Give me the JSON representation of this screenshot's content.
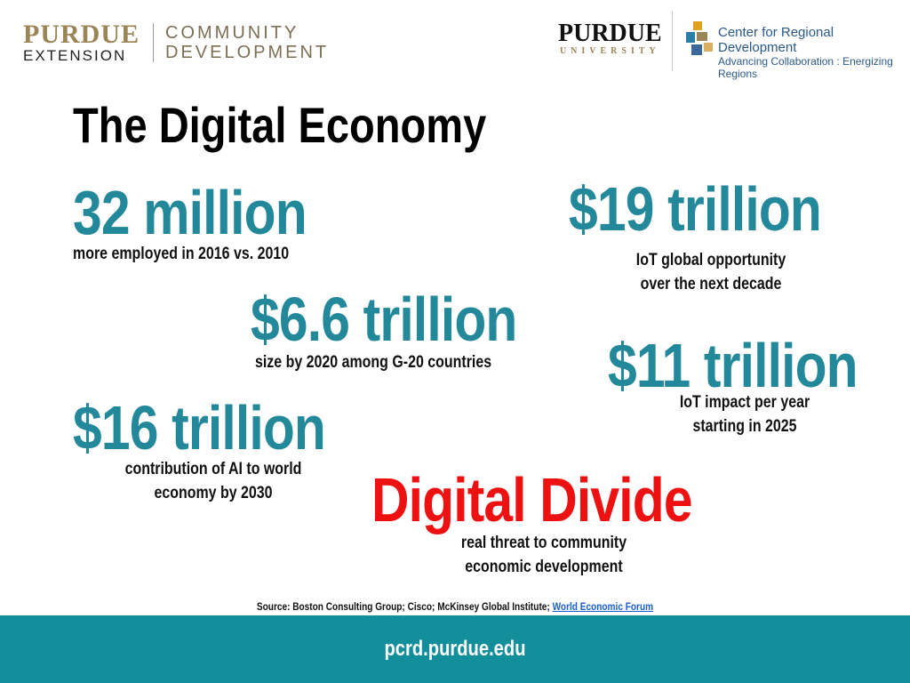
{
  "header": {
    "left_logo": {
      "wordmark_top": "PURDUE",
      "wordmark_bottom": "EXTENSION",
      "division_top": "COMMUNITY",
      "division_bottom": "DEVELOPMENT"
    },
    "right_logo": {
      "wordmark_top": "PURDUE",
      "wordmark_bottom": "UNIVERSITY",
      "center_name": "Center for Regional Development",
      "tagline": "Advancing Collaboration : Energizing Regions"
    }
  },
  "title": "The Digital Economy",
  "stats": [
    {
      "figure": "32 million",
      "caption": [
        "more employed in 2016 vs. 2010"
      ]
    },
    {
      "figure": "$19 trillion",
      "caption": [
        "IoT global opportunity",
        "over the next decade"
      ]
    },
    {
      "figure": "$6.6 trillion",
      "caption": [
        "size by 2020 among G-20 countries"
      ]
    },
    {
      "figure": "$11 trillion",
      "caption": [
        "IoT impact per year",
        "starting in 2025"
      ]
    },
    {
      "figure": "$16 trillion",
      "caption": [
        "contribution of AI to world",
        "economy by 2030"
      ]
    },
    {
      "figure": "Digital Divide",
      "caption": [
        "real threat to community",
        "economic development"
      ]
    }
  ],
  "source": {
    "text": "Source: Boston Consulting Group; Cisco; McKinsey Global Institute;",
    "link": "World Economic Forum"
  },
  "footer": "pcrd.purdue.edu"
}
